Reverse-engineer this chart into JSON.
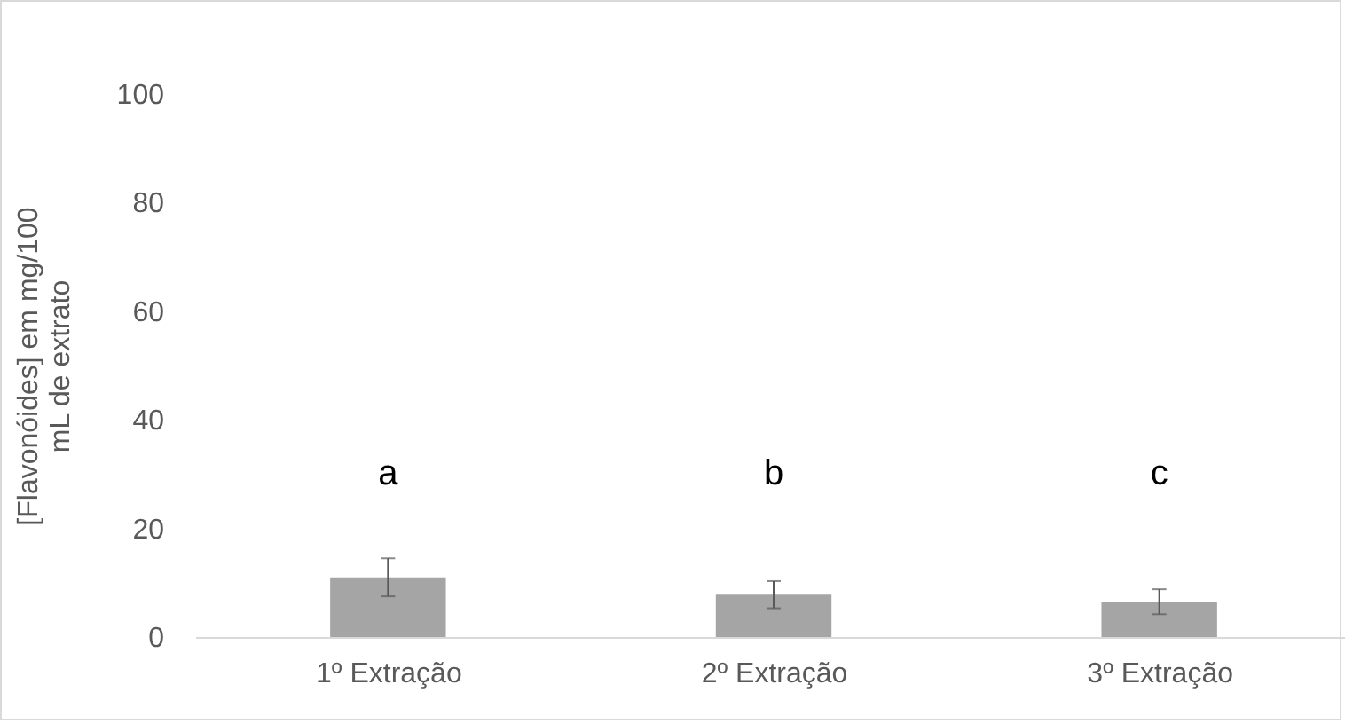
{
  "chart_data": {
    "type": "bar",
    "ylabel": "[Flavonóides] em  mg/100 mL de extrato",
    "categories": [
      "1º Extração",
      "2º Extração",
      "3º Extração"
    ],
    "values": [
      11,
      7.8,
      6.5
    ],
    "color": "#a5a5a5",
    "errors": [
      3.5,
      2.5,
      2.3
    ],
    "ylim": [
      0,
      100
    ],
    "yticks": [
      0,
      20,
      40,
      60,
      80,
      100
    ],
    "grid": false,
    "annotations": [
      "a",
      "b",
      "c"
    ]
  }
}
